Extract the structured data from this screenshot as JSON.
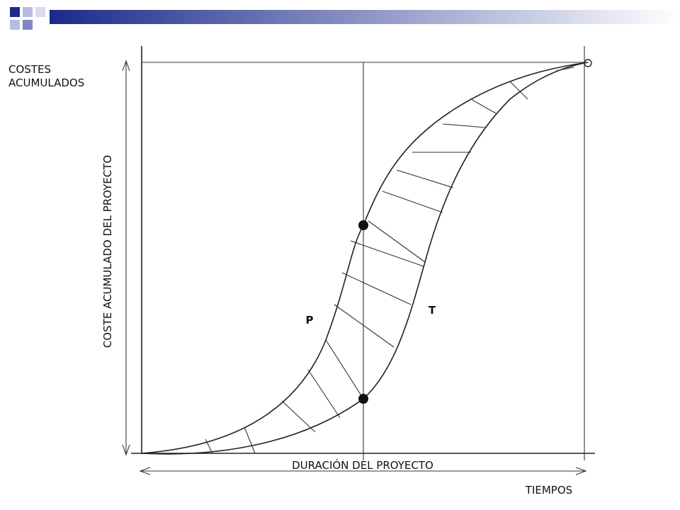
{
  "labels": {
    "y_axis": [
      "COSTES",
      "ACUMULADOS"
    ],
    "vertical": "COSTE ACUMULADO DEL PROYECTO",
    "duration": "DURACIÓN DEL PROYECTO",
    "x_axis": "TIEMPOS"
  },
  "curves": {
    "p": "P",
    "t": "T"
  }
}
